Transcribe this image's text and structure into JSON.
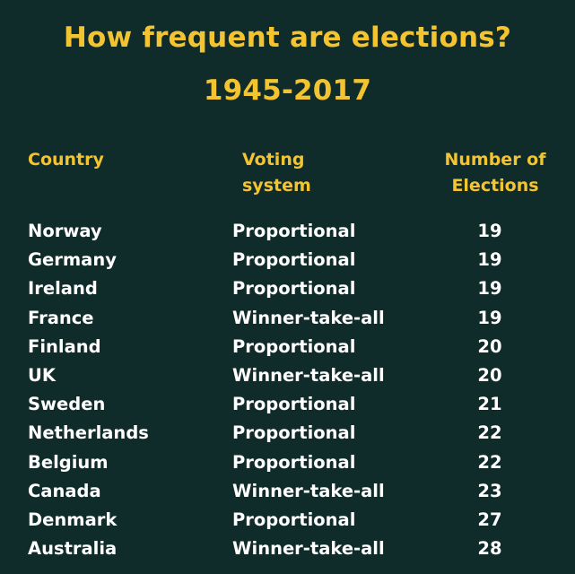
{
  "chart_data": {
    "type": "table",
    "title": "How frequent are elections?",
    "subtitle": "1945-2017",
    "columns": [
      "Country",
      "Voting\nsystem",
      "Number of\nElections"
    ],
    "rows": [
      {
        "country": "Norway",
        "system": "Proportional",
        "elections": "19"
      },
      {
        "country": "Germany",
        "system": "Proportional",
        "elections": "19"
      },
      {
        "country": "Ireland",
        "system": "Proportional",
        "elections": "19"
      },
      {
        "country": "France",
        "system": "Winner-take-all",
        "elections": "19"
      },
      {
        "country": "Finland",
        "system": "Proportional",
        "elections": "20"
      },
      {
        "country": "UK",
        "system": "Winner-take-all",
        "elections": "20"
      },
      {
        "country": "Sweden",
        "system": "Proportional",
        "elections": "21"
      },
      {
        "country": "Netherlands",
        "system": "Proportional",
        "elections": "22"
      },
      {
        "country": "Belgium",
        "system": "Proportional",
        "elections": "22"
      },
      {
        "country": "Canada",
        "system": "Winner-take-all",
        "elections": "23"
      },
      {
        "country": "Denmark",
        "system": "Proportional",
        "elections": "27"
      },
      {
        "country": "Australia",
        "system": "Winner-take-all",
        "elections": "28"
      }
    ]
  },
  "colors": {
    "background": "#0f2b2a",
    "accent": "#f4c430",
    "text": "#ffffff"
  }
}
